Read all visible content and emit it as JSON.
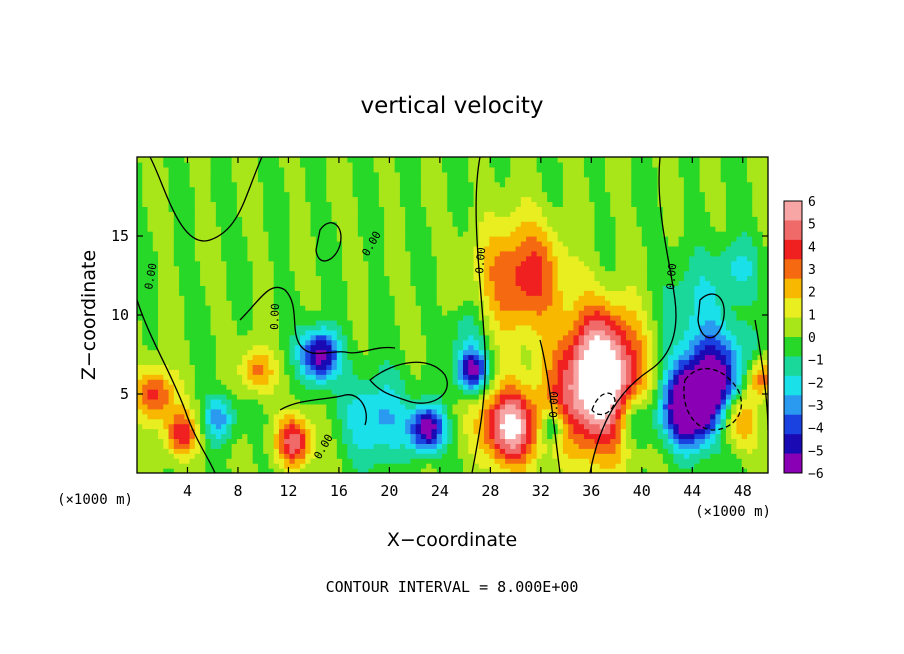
{
  "chart_data": {
    "type": "heatmap",
    "title": "vertical velocity",
    "xlabel": "X−coordinate",
    "ylabel": "Z−coordinate",
    "x_unit_left": "(×1000 m)",
    "x_unit_right": "(×1000 m)",
    "footer": "CONTOUR INTERVAL = 8.000E+00",
    "xlim": [
      0,
      50
    ],
    "ylim": [
      0,
      20
    ],
    "x_ticks": [
      4,
      8,
      12,
      16,
      20,
      24,
      28,
      32,
      36,
      40,
      44,
      48
    ],
    "x_tick_labels": [
      "4",
      "8",
      "12",
      "16",
      "20",
      "24",
      "28",
      "32",
      "36",
      "40",
      "44",
      "48"
    ],
    "y_ticks": [
      5,
      10,
      15
    ],
    "y_tick_labels": [
      "5",
      "10",
      "15"
    ],
    "contour_labels": [
      "0.00",
      "0.00",
      "0.00",
      "0.00",
      "0.00",
      "0.00",
      "0.00"
    ],
    "colorbar": {
      "labels": [
        "6",
        "5",
        "4",
        "3",
        "2",
        "1",
        "0",
        "−1",
        "−2",
        "−3",
        "−4",
        "−5",
        "−6"
      ],
      "colors": [
        "#f7a5a5",
        "#f06a6a",
        "#f02020",
        "#f56a10",
        "#f8b800",
        "#e8ee20",
        "#a8e61a",
        "#28d828",
        "#1ad89a",
        "#1ae0ea",
        "#2a9af0",
        "#1a42e0",
        "#1a0ab4",
        "#8a00b4"
      ]
    },
    "features": [
      {
        "x": 30.5,
        "z": 12.5,
        "w": 3.2,
        "v": 4.0
      },
      {
        "x": 29.5,
        "z": 3.0,
        "w": 2.2,
        "v": 6.5
      },
      {
        "x": 36.5,
        "z": 5.0,
        "w": 3.5,
        "v": 6.5
      },
      {
        "x": 37.0,
        "z": 8.0,
        "w": 3.0,
        "v": 3.0
      },
      {
        "x": 45.5,
        "z": 5.5,
        "w": 3.0,
        "v": -6.5
      },
      {
        "x": 43.5,
        "z": 4.0,
        "w": 2.0,
        "v": -5.0
      },
      {
        "x": 47.5,
        "z": 3.5,
        "w": 1.8,
        "v": 4.5
      },
      {
        "x": 49.5,
        "z": 6.0,
        "w": 1.2,
        "v": 4.0
      },
      {
        "x": 14.5,
        "z": 7.5,
        "w": 1.5,
        "v": -6.0
      },
      {
        "x": 23.0,
        "z": 2.8,
        "w": 1.3,
        "v": -6.0
      },
      {
        "x": 26.5,
        "z": 6.5,
        "w": 1.2,
        "v": -6.0
      },
      {
        "x": 12.5,
        "z": 2.0,
        "w": 1.4,
        "v": 5.0
      },
      {
        "x": 1.5,
        "z": 5.0,
        "w": 1.5,
        "v": 4.0
      },
      {
        "x": 3.5,
        "z": 2.5,
        "w": 1.3,
        "v": 4.0
      },
      {
        "x": 9.5,
        "z": 6.5,
        "w": 1.3,
        "v": 3.0
      },
      {
        "x": 6.5,
        "z": 3.5,
        "w": 1.3,
        "v": -3.0
      },
      {
        "x": 19.0,
        "z": 3.5,
        "w": 2.5,
        "v": -3.0
      },
      {
        "x": 44.0,
        "z": 11.0,
        "w": 2.5,
        "v": -1.5
      },
      {
        "x": 47.5,
        "z": 13.0,
        "w": 1.8,
        "v": -2.0
      },
      {
        "x": 26.0,
        "z": 9.0,
        "w": 1.4,
        "v": -1.5
      },
      {
        "x": 39.5,
        "z": 3.5,
        "w": 1.5,
        "v": -3.0
      },
      {
        "x": 33.0,
        "z": 3.0,
        "w": 1.0,
        "v": -3.0
      }
    ]
  }
}
